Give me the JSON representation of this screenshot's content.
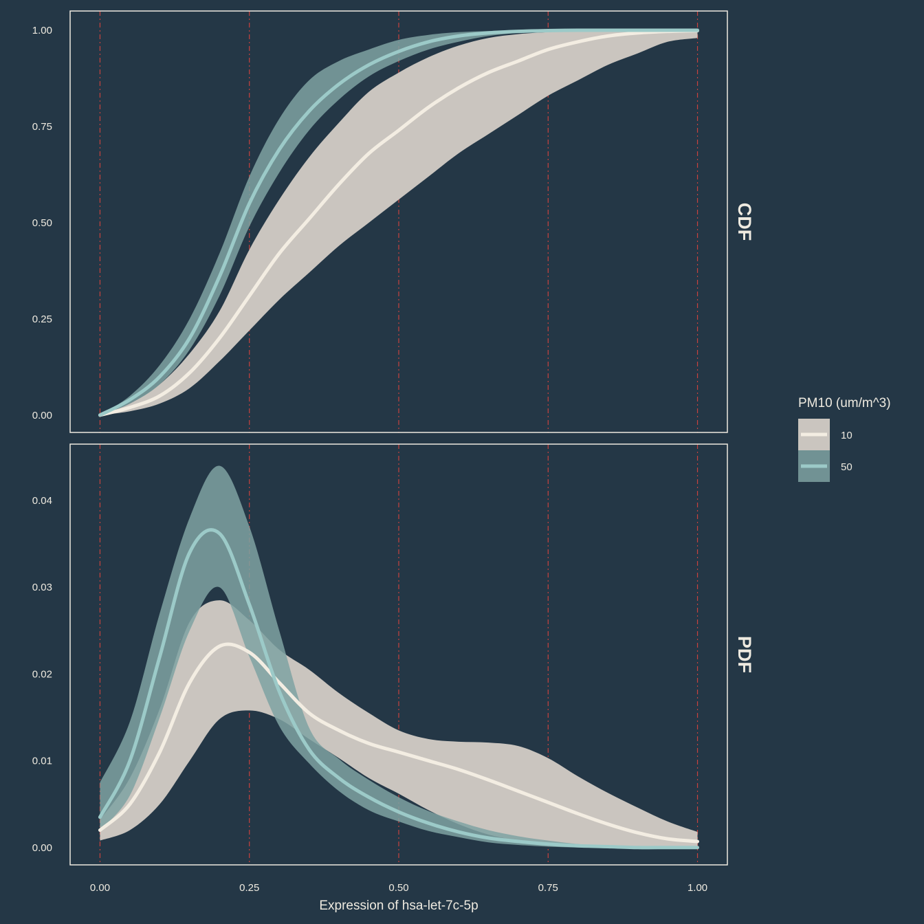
{
  "colors": {
    "background": "#243746",
    "text": "#eeeae0",
    "panel_border": "#eeeae0",
    "vline": "#c9423e",
    "band_10": "#cac5bf",
    "line_10": "#f3ede2",
    "band_50": "#7fa2a2",
    "line_50": "#9ccac8"
  },
  "chart_data": {
    "type": "area",
    "xlabel": "Expression of hsa-let-7c-5p",
    "x_ticks": [
      "0.00",
      "0.25",
      "0.50",
      "0.75",
      "1.00"
    ],
    "x_tick_values": [
      0,
      0.25,
      0.5,
      0.75,
      1.0
    ],
    "vlines": [
      0,
      0.25,
      0.5,
      0.75,
      1.0
    ],
    "xlim": [
      -0.05,
      1.05
    ],
    "legend": {
      "title": "PM10 (um/m^3)",
      "position": "right",
      "items": [
        {
          "key": "10",
          "label": "10"
        },
        {
          "key": "50",
          "label": "50"
        }
      ]
    },
    "panels": [
      {
        "strip": "CDF",
        "ylim": [
          -0.045,
          1.05
        ],
        "y_ticks": [
          "0.00",
          "0.25",
          "0.50",
          "0.75",
          "1.00"
        ],
        "y_tick_values": [
          0,
          0.25,
          0.5,
          0.75,
          1.0
        ],
        "x": [
          0,
          0.05,
          0.1,
          0.15,
          0.2,
          0.25,
          0.3,
          0.35,
          0.4,
          0.45,
          0.5,
          0.55,
          0.6,
          0.65,
          0.7,
          0.75,
          0.8,
          0.85,
          0.9,
          0.95,
          1.0
        ],
        "series": [
          {
            "key": "10",
            "mean": [
              0.0,
              0.02,
              0.05,
              0.11,
              0.2,
              0.31,
              0.42,
              0.51,
              0.6,
              0.68,
              0.74,
              0.8,
              0.85,
              0.89,
              0.92,
              0.95,
              0.97,
              0.985,
              0.993,
              0.997,
              0.999
            ],
            "lower": [
              0.0,
              0.01,
              0.03,
              0.07,
              0.14,
              0.22,
              0.3,
              0.37,
              0.44,
              0.5,
              0.56,
              0.62,
              0.68,
              0.73,
              0.78,
              0.83,
              0.87,
              0.91,
              0.94,
              0.97,
              0.98
            ],
            "upper": [
              0.0,
              0.03,
              0.08,
              0.16,
              0.27,
              0.43,
              0.56,
              0.67,
              0.76,
              0.84,
              0.89,
              0.93,
              0.96,
              0.98,
              0.99,
              0.995,
              0.998,
              0.999,
              1.0,
              1.0,
              1.0
            ]
          },
          {
            "key": "50",
            "mean": [
              0.0,
              0.04,
              0.1,
              0.2,
              0.36,
              0.55,
              0.69,
              0.79,
              0.86,
              0.91,
              0.945,
              0.97,
              0.985,
              0.993,
              0.997,
              0.999,
              1.0,
              1.0,
              1.0,
              1.0,
              1.0
            ],
            "lower": [
              0.0,
              0.03,
              0.08,
              0.17,
              0.31,
              0.49,
              0.63,
              0.74,
              0.82,
              0.88,
              0.92,
              0.95,
              0.97,
              0.985,
              0.993,
              0.997,
              0.999,
              1.0,
              1.0,
              1.0,
              1.0
            ],
            "upper": [
              0.0,
              0.05,
              0.13,
              0.25,
              0.42,
              0.62,
              0.77,
              0.87,
              0.92,
              0.95,
              0.975,
              0.988,
              0.995,
              0.998,
              1.0,
              1.0,
              1.0,
              1.0,
              1.0,
              1.0,
              1.0
            ]
          }
        ]
      },
      {
        "strip": "PDF",
        "ylim": [
          -0.002,
          0.0465
        ],
        "y_ticks": [
          "0.00",
          "0.01",
          "0.02",
          "0.03",
          "0.04"
        ],
        "y_tick_values": [
          0,
          0.01,
          0.02,
          0.03,
          0.04
        ],
        "x": [
          0,
          0.05,
          0.1,
          0.15,
          0.2,
          0.25,
          0.3,
          0.35,
          0.4,
          0.45,
          0.5,
          0.55,
          0.6,
          0.65,
          0.7,
          0.75,
          0.8,
          0.85,
          0.9,
          0.95,
          1.0
        ],
        "series": [
          {
            "key": "10",
            "mean": [
              0.002,
              0.005,
              0.011,
              0.019,
              0.0232,
              0.0225,
              0.019,
              0.0155,
              0.0135,
              0.012,
              0.011,
              0.01,
              0.009,
              0.0078,
              0.0065,
              0.0052,
              0.0039,
              0.0027,
              0.0017,
              0.001,
              0.0007
            ],
            "lower": [
              0.0008,
              0.002,
              0.005,
              0.01,
              0.0148,
              0.0158,
              0.0148,
              0.0125,
              0.0103,
              0.008,
              0.0062,
              0.0043,
              0.0027,
              0.0015,
              0.0008,
              0.0004,
              0.0002,
              0.0001,
              0.0,
              0.0,
              0.0
            ],
            "upper": [
              0.0032,
              0.008,
              0.016,
              0.026,
              0.0285,
              0.0262,
              0.0228,
              0.0205,
              0.0178,
              0.0155,
              0.0135,
              0.0125,
              0.0122,
              0.0121,
              0.0117,
              0.0103,
              0.0082,
              0.0063,
              0.0046,
              0.003,
              0.0018
            ]
          },
          {
            "key": "50",
            "mean": [
              0.0035,
              0.01,
              0.022,
              0.034,
              0.0362,
              0.028,
              0.018,
              0.0113,
              0.008,
              0.0058,
              0.0041,
              0.0028,
              0.0018,
              0.0011,
              0.0007,
              0.0004,
              0.0002,
              0.0001,
              0.0,
              0.0,
              0.0
            ],
            "lower": [
              0.002,
              0.006,
              0.015,
              0.025,
              0.03,
              0.022,
              0.014,
              0.0097,
              0.0065,
              0.0043,
              0.003,
              0.0019,
              0.0012,
              0.0006,
              0.0003,
              0.0001,
              0.0,
              0.0,
              0.0,
              0.0,
              0.0
            ],
            "upper": [
              0.0075,
              0.0145,
              0.027,
              0.038,
              0.044,
              0.037,
              0.025,
              0.0138,
              0.0102,
              0.0078,
              0.0058,
              0.0042,
              0.003,
              0.002,
              0.0013,
              0.0008,
              0.0004,
              0.0002,
              0.0001,
              0.0,
              0.0
            ]
          }
        ]
      }
    ]
  }
}
